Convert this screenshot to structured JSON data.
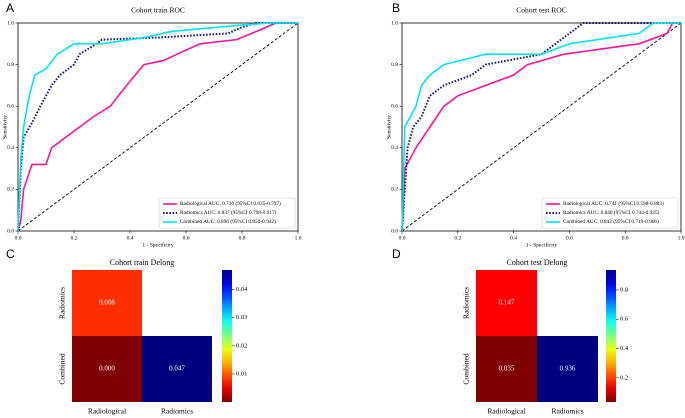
{
  "chart_data": [
    {
      "type": "line",
      "label": "A",
      "title": "Cohort train ROC",
      "xlabel": "1 - Specificity",
      "ylabel": "Sensitivity",
      "xlim": [
        0,
        1
      ],
      "ylim": [
        0,
        1
      ],
      "xticks": [
        {
          "value": 0,
          "label": "0.0"
        },
        {
          "value": 0.2,
          "label": "0.2"
        },
        {
          "value": 0.4,
          "label": "0.4"
        },
        {
          "value": 0.6,
          "label": "0.6"
        },
        {
          "value": 0.8,
          "label": "0.8"
        },
        {
          "value": 1,
          "label": "1.0"
        }
      ],
      "yticks": [
        {
          "value": 0,
          "label": "0.0"
        },
        {
          "value": 0.2,
          "label": "0.2"
        },
        {
          "value": 0.4,
          "label": "0.4"
        },
        {
          "value": 0.6,
          "label": "0.6"
        },
        {
          "value": 0.8,
          "label": "0.8"
        },
        {
          "value": 1,
          "label": "1.0"
        }
      ],
      "legend": "lower right",
      "series": [
        {
          "name": "Radiological AUC: 0.716 (95%CI 0.635-0.797)",
          "color": "#ff1493",
          "linestyle": "solid",
          "x": [
            0,
            0.01,
            0.02,
            0.03,
            0.05,
            0.1,
            0.12,
            0.17,
            0.22,
            0.27,
            0.33,
            0.37,
            0.4,
            0.45,
            0.52,
            0.6,
            0.65,
            0.78,
            0.87,
            0.92,
            1
          ],
          "values": [
            0,
            0.05,
            0.2,
            0.24,
            0.32,
            0.32,
            0.4,
            0.45,
            0.5,
            0.55,
            0.6,
            0.67,
            0.72,
            0.8,
            0.82,
            0.87,
            0.9,
            0.92,
            0.97,
            1,
            1
          ]
        },
        {
          "name": "Radiomics AUC: 0.837 (95%CI 0.798-0.917)",
          "color": "#191970",
          "linestyle": "dotted",
          "x": [
            0,
            0.01,
            0.02,
            0.05,
            0.08,
            0.12,
            0.15,
            0.2,
            0.22,
            0.28,
            0.3,
            0.5,
            0.75,
            0.8,
            0.85,
            1
          ],
          "values": [
            0,
            0.3,
            0.45,
            0.52,
            0.6,
            0.7,
            0.75,
            0.8,
            0.85,
            0.9,
            0.92,
            0.93,
            0.95,
            0.98,
            1,
            1
          ]
        },
        {
          "name": "Combined AUC: 0.896 (95%CI 0.850-0.942)",
          "color": "#00e5ee",
          "linestyle": "solid",
          "x": [
            0,
            0.01,
            0.02,
            0.04,
            0.06,
            0.1,
            0.14,
            0.2,
            0.3,
            0.45,
            0.55,
            0.8,
            0.9,
            1
          ],
          "values": [
            0,
            0.35,
            0.5,
            0.65,
            0.75,
            0.78,
            0.85,
            0.9,
            0.9,
            0.93,
            0.96,
            0.99,
            1,
            1
          ]
        }
      ]
    },
    {
      "type": "line",
      "label": "B",
      "title": "Cohort test ROC",
      "xlabel": "1 - Specificity",
      "ylabel": "Sensitivity",
      "xlim": [
        0,
        1
      ],
      "ylim": [
        0,
        1
      ],
      "xticks": [
        {
          "value": 0,
          "label": "0.0"
        },
        {
          "value": 0.2,
          "label": "0.2"
        },
        {
          "value": 0.4,
          "label": "0.4"
        },
        {
          "value": 0.6,
          "label": "0.6"
        },
        {
          "value": 0.8,
          "label": "0.8"
        },
        {
          "value": 1,
          "label": "1.0"
        }
      ],
      "yticks": [
        {
          "value": 0,
          "label": "0.0"
        },
        {
          "value": 0.2,
          "label": "0.2"
        },
        {
          "value": 0.4,
          "label": "0.4"
        },
        {
          "value": 0.6,
          "label": "0.6"
        },
        {
          "value": 0.8,
          "label": "0.8"
        },
        {
          "value": 1,
          "label": "1.0"
        }
      ],
      "legend": "lower right",
      "series": [
        {
          "name": "Radiological AUC: 0.741 (95%CI 0.598-0.883)",
          "color": "#ff1493",
          "linestyle": "solid",
          "x": [
            0,
            0.01,
            0.03,
            0.05,
            0.1,
            0.15,
            0.2,
            0.3,
            0.4,
            0.45,
            0.58,
            0.85,
            0.95,
            0.97,
            1
          ],
          "values": [
            0,
            0.3,
            0.35,
            0.4,
            0.5,
            0.6,
            0.65,
            0.7,
            0.75,
            0.8,
            0.85,
            0.9,
            0.95,
            1,
            1
          ]
        },
        {
          "name": "Radiomics AUC: 0.840 (95%CI 0.744-0.935)",
          "color": "#191970",
          "linestyle": "dotted",
          "x": [
            0,
            0.01,
            0.02,
            0.04,
            0.07,
            0.1,
            0.15,
            0.25,
            0.3,
            0.5,
            0.55,
            0.6,
            0.65,
            1
          ],
          "values": [
            0,
            0.2,
            0.4,
            0.5,
            0.55,
            0.65,
            0.7,
            0.75,
            0.8,
            0.85,
            0.9,
            0.95,
            1,
            1
          ]
        },
        {
          "name": "Combined AUC: 0.842 (95%CI 0.719-0.966)",
          "color": "#00e5ee",
          "linestyle": "solid",
          "x": [
            0,
            0.01,
            0.05,
            0.07,
            0.1,
            0.15,
            0.3,
            0.5,
            0.6,
            0.85,
            0.9,
            1
          ],
          "values": [
            0,
            0.5,
            0.6,
            0.7,
            0.75,
            0.8,
            0.85,
            0.85,
            0.9,
            0.95,
            1,
            1
          ]
        }
      ]
    },
    {
      "type": "heatmap",
      "label": "C",
      "title": "Cohort train Delong",
      "colormap": "jet_r",
      "x_categories": [
        "Radiological",
        "Radiomics"
      ],
      "y_categories": [
        "Radiomics",
        "Combined"
      ],
      "values": [
        [
          0.008,
          null
        ],
        [
          0,
          0.047
        ]
      ],
      "value_labels": [
        [
          "0.008",
          null
        ],
        [
          "0.000",
          "0.047"
        ]
      ],
      "zlim": [
        0,
        0.047
      ],
      "zticks": [
        0.01,
        0.02,
        0.03,
        0.04
      ]
    },
    {
      "type": "heatmap",
      "label": "D",
      "title": "Cohort test Delong",
      "colormap": "jet_r",
      "x_categories": [
        "Radiological",
        "Radiomics"
      ],
      "y_categories": [
        "Radiomics",
        "Combined"
      ],
      "values": [
        [
          0.147,
          null
        ],
        [
          0.035,
          0.936
        ]
      ],
      "value_labels": [
        [
          "0.147",
          null
        ],
        [
          "0.035",
          "0.936"
        ]
      ],
      "zlim": [
        0.035,
        0.936
      ],
      "zticks": [
        0.2,
        0.4,
        0.6,
        0.8
      ]
    }
  ]
}
